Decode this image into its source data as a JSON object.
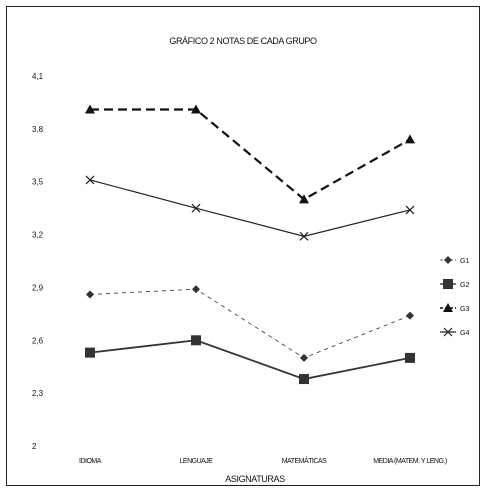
{
  "chart_data": {
    "type": "line",
    "title": "GRÁFICO 2 NOTAS DE CADA GRUPO",
    "xlabel": "ASIGNATURAS",
    "ylabel": "",
    "ylim": [
      2,
      4.1
    ],
    "y_ticks": [
      "2",
      "2,3",
      "2,6",
      "2,9",
      "3,2",
      "3,5",
      "3,8",
      "4,1"
    ],
    "y_tick_values": [
      2,
      2.3,
      2.6,
      2.9,
      3.2,
      3.5,
      3.8,
      4.1
    ],
    "categories": [
      "IDIOMA",
      "LENGUAJE",
      "MATEMÁTICAS",
      "MEDIA (MATEM. Y LENG.)"
    ],
    "grid": false,
    "legend_position": "right",
    "series": [
      {
        "name": "G1",
        "values": [
          2.86,
          2.89,
          2.5,
          2.74
        ],
        "color": "#333333",
        "dash": "4,4",
        "marker": "diamond",
        "stroke_width": 0.8
      },
      {
        "name": "G2",
        "values": [
          2.53,
          2.6,
          2.38,
          2.5
        ],
        "color": "#333333",
        "dash": "",
        "marker": "square",
        "stroke_width": 1.8
      },
      {
        "name": "G3",
        "values": [
          3.91,
          3.91,
          3.4,
          3.74
        ],
        "color": "#111111",
        "dash": "9,5",
        "marker": "triangle",
        "stroke_width": 2.2
      },
      {
        "name": "G4",
        "values": [
          3.51,
          3.35,
          3.19,
          3.34
        ],
        "color": "#222222",
        "dash": "",
        "marker": "x",
        "stroke_width": 1.2
      }
    ]
  }
}
